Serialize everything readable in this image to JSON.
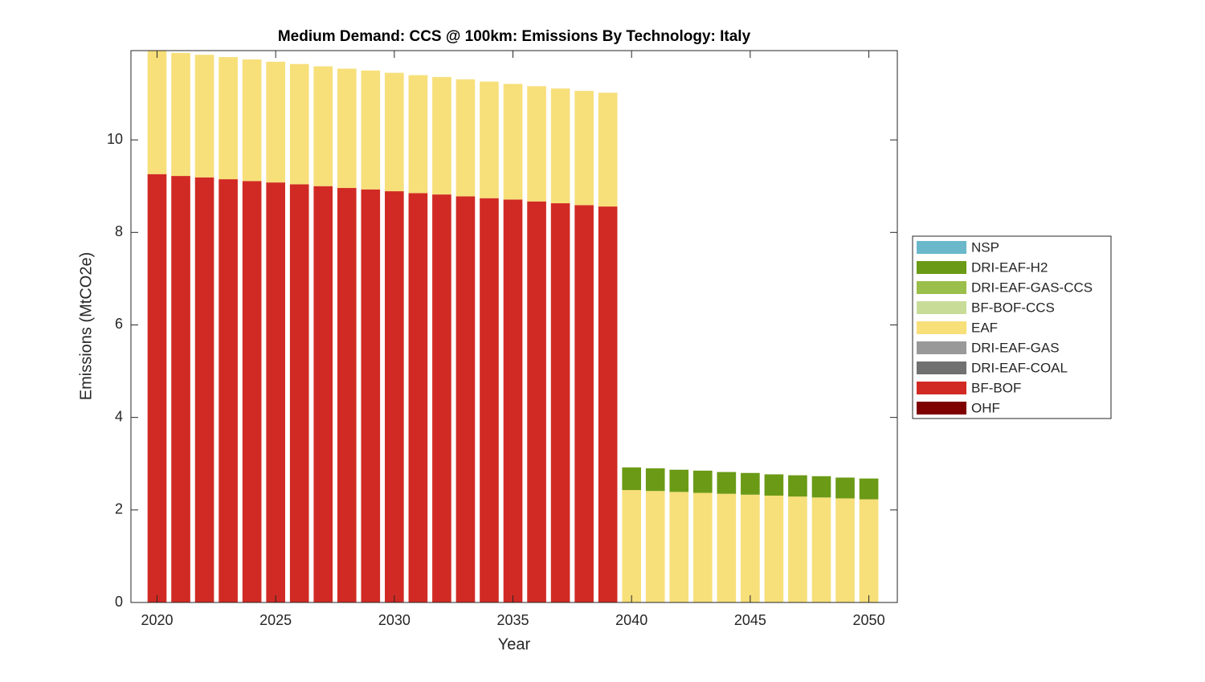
{
  "chart_data": {
    "type": "stacked-bar",
    "title": "Medium Demand: CCS @ 100km: Emissions By Technology: Italy",
    "x_label": "Year",
    "y_label": "Emissions (MtCO2e)",
    "x": [
      2020,
      2021,
      2022,
      2023,
      2024,
      2025,
      2026,
      2027,
      2028,
      2029,
      2030,
      2031,
      2032,
      2033,
      2034,
      2035,
      2036,
      2037,
      2038,
      2039,
      2040,
      2041,
      2042,
      2043,
      2044,
      2045,
      2046,
      2047,
      2048,
      2049,
      2050
    ],
    "series": [
      {
        "name": "NSP",
        "color": "#6ab8c9",
        "values": [
          0,
          0,
          0,
          0,
          0,
          0,
          0,
          0,
          0,
          0,
          0,
          0,
          0,
          0,
          0,
          0,
          0,
          0,
          0,
          0,
          0,
          0,
          0,
          0,
          0,
          0,
          0,
          0,
          0,
          0,
          0
        ]
      },
      {
        "name": "DRI-EAF-H2",
        "color": "#6b9a16",
        "values": [
          0,
          0,
          0,
          0,
          0,
          0,
          0,
          0,
          0,
          0,
          0,
          0,
          0,
          0,
          0,
          0,
          0,
          0,
          0,
          0,
          0.49,
          0.49,
          0.48,
          0.48,
          0.47,
          0.47,
          0.46,
          0.46,
          0.46,
          0.45,
          0.45
        ]
      },
      {
        "name": "DRI-EAF-GAS-CCS",
        "color": "#9abf4a",
        "values": [
          0,
          0,
          0,
          0,
          0,
          0,
          0,
          0,
          0,
          0,
          0,
          0,
          0,
          0,
          0,
          0,
          0,
          0,
          0,
          0,
          0,
          0,
          0,
          0,
          0,
          0,
          0,
          0,
          0,
          0,
          0
        ]
      },
      {
        "name": "BF-BOF-CCS",
        "color": "#c8dc98",
        "values": [
          0,
          0,
          0,
          0,
          0,
          0,
          0,
          0,
          0,
          0,
          0,
          0,
          0,
          0,
          0,
          0,
          0,
          0,
          0,
          0,
          0,
          0,
          0,
          0,
          0,
          0,
          0,
          0,
          0,
          0,
          0
        ]
      },
      {
        "name": "EAF",
        "color": "#f7df7a",
        "values": [
          2.67,
          2.66,
          2.65,
          2.64,
          2.63,
          2.61,
          2.6,
          2.59,
          2.58,
          2.57,
          2.56,
          2.55,
          2.54,
          2.53,
          2.52,
          2.5,
          2.49,
          2.48,
          2.47,
          2.46,
          2.43,
          2.41,
          2.39,
          2.37,
          2.35,
          2.33,
          2.31,
          2.29,
          2.27,
          2.25,
          2.23
        ]
      },
      {
        "name": "DRI-EAF-GAS",
        "color": "#999999",
        "values": [
          0,
          0,
          0,
          0,
          0,
          0,
          0,
          0,
          0,
          0,
          0,
          0,
          0,
          0,
          0,
          0,
          0,
          0,
          0,
          0,
          0,
          0,
          0,
          0,
          0,
          0,
          0,
          0,
          0,
          0,
          0
        ]
      },
      {
        "name": "DRI-EAF-COAL",
        "color": "#707070",
        "values": [
          0,
          0,
          0,
          0,
          0,
          0,
          0,
          0,
          0,
          0,
          0,
          0,
          0,
          0,
          0,
          0,
          0,
          0,
          0,
          0,
          0,
          0,
          0,
          0,
          0,
          0,
          0,
          0,
          0,
          0,
          0
        ]
      },
      {
        "name": "BF-BOF",
        "color": "#d12a24",
        "values": [
          9.26,
          9.22,
          9.19,
          9.15,
          9.11,
          9.08,
          9.04,
          9.0,
          8.96,
          8.93,
          8.89,
          8.85,
          8.82,
          8.78,
          8.74,
          8.71,
          8.67,
          8.63,
          8.59,
          8.56,
          0,
          0,
          0,
          0,
          0,
          0,
          0,
          0,
          0,
          0,
          0
        ]
      },
      {
        "name": "OHF",
        "color": "#7f0000",
        "values": [
          0,
          0,
          0,
          0,
          0,
          0,
          0,
          0,
          0,
          0,
          0,
          0,
          0,
          0,
          0,
          0,
          0,
          0,
          0,
          0,
          0,
          0,
          0,
          0,
          0,
          0,
          0,
          0,
          0,
          0,
          0
        ]
      }
    ],
    "xlim": [
      2018.9,
      2051.2
    ],
    "ylim": [
      0,
      11.93
    ],
    "xticks": [
      2020,
      2025,
      2030,
      2035,
      2040,
      2045,
      2050
    ],
    "yticks": [
      0,
      2,
      4,
      6,
      8,
      10
    ],
    "legend": "outside-right"
  }
}
